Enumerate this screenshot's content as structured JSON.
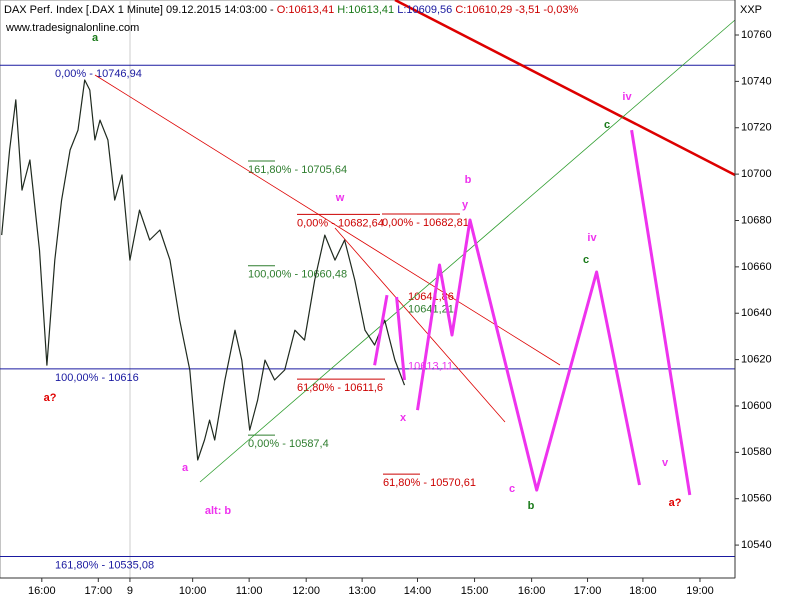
{
  "chart_data": {
    "type": "line",
    "title_parts": [
      "DAX Perf. Index [.DAX  1 Minute] 09.12.2015 14:03:00 - ",
      "O:10613,41",
      " H:10613,41",
      " L:10609,56",
      " C:10610,29 -3,51 -0,03%"
    ],
    "source": "www.tradesignalonline.com",
    "axis_label": "XXP",
    "xlim": [
      -0.74,
      12.27
    ],
    "ylim": [
      10525.8,
      10775.1
    ],
    "xticks": [
      {
        "value": 0,
        "label": "16:00"
      },
      {
        "value": 1,
        "label": "17:00"
      },
      {
        "value": 1.56,
        "label": "9"
      },
      {
        "value": 2.67,
        "label": "10:00"
      },
      {
        "value": 3.67,
        "label": "11:00"
      },
      {
        "value": 4.68,
        "label": "12:00"
      },
      {
        "value": 5.67,
        "label": "13:00"
      },
      {
        "value": 6.65,
        "label": "14:00"
      },
      {
        "value": 7.66,
        "label": "15:00"
      },
      {
        "value": 8.67,
        "label": "16:00"
      },
      {
        "value": 9.66,
        "label": "17:00"
      },
      {
        "value": 10.64,
        "label": "18:00"
      },
      {
        "value": 11.65,
        "label": "19:00"
      }
    ],
    "yticks": [
      10540,
      10560,
      10580,
      10600,
      10620,
      10640,
      10660,
      10680,
      10700,
      10720,
      10740,
      10760
    ],
    "series": [
      {
        "color": "#1f2a1f",
        "width": 1.2,
        "x": [
          -0.71,
          -0.57,
          -0.46,
          -0.35,
          -0.21,
          -0.04,
          0.09,
          0.23,
          0.35,
          0.5,
          0.64,
          0.76,
          0.85,
          0.94,
          1.03,
          1.17,
          1.29,
          1.42,
          1.56,
          1.73,
          1.91,
          2.09,
          2.27,
          2.44,
          2.62,
          2.76,
          2.88,
          2.97,
          3.06,
          3.24,
          3.42,
          3.54,
          3.68,
          3.82,
          3.95,
          4.12,
          4.3,
          4.48,
          4.65,
          4.83,
          5.01,
          5.19,
          5.36,
          5.54,
          5.72,
          5.89,
          6.07,
          6.25,
          6.42
        ],
        "values": [
          10673.7,
          10710.4,
          10732.0,
          10693.1,
          10706.1,
          10667.2,
          10617.6,
          10662.9,
          10688.8,
          10710.4,
          10719.0,
          10740.6,
          10736.3,
          10714.7,
          10723.3,
          10714.7,
          10688.8,
          10699.6,
          10662.9,
          10684.5,
          10671.6,
          10675.9,
          10662.9,
          10637.0,
          10615.5,
          10576.7,
          10585.3,
          10593.9,
          10585.3,
          10611.2,
          10632.7,
          10619.8,
          10589.6,
          10602.5,
          10619.8,
          10611.2,
          10615.5,
          10632.7,
          10628.4,
          10654.3,
          10673.7,
          10662.9,
          10671.6,
          10654.3,
          10632.7,
          10626.3,
          10637.0,
          10619.8,
          10609.0
        ]
      },
      {
        "color": "#ee33ee",
        "width": 3,
        "x": [
          6.65,
          7.04,
          7.26,
          7.58,
          8.76,
          9.82,
          10.58,
          null,
          10.44,
          11.47,
          null,
          5.89,
          6.11,
          null,
          6.28,
          6.42
        ],
        "values": [
          10598.2,
          10660.8,
          10630.6,
          10680.2,
          10563.7,
          10657.8,
          10565.9,
          null,
          10719.0,
          10561.6,
          null,
          10617.6,
          10647.8,
          null,
          10647.0,
          10611.2
        ]
      }
    ],
    "levels": [
      {
        "value": 10746.94,
        "label": "0,00% - 10746,94",
        "color": "#1a1aa0"
      },
      {
        "value": 10616,
        "label": "100,00% - 10616",
        "color": "#1a1aa0"
      },
      {
        "value": 10535.08,
        "label": "161,80% - 10535,08",
        "color": "#1a1aa0"
      },
      {
        "value": 10682.64,
        "label": "0,00% - 10682,64",
        "color": "#cc0000"
      },
      {
        "value": 10682.81,
        "label": "0,00% - 10682,81",
        "color": "#cc0000"
      },
      {
        "value": 10611.6,
        "label": "61,80% - 10611,6",
        "color": "#cc0000"
      },
      {
        "value": 10570.61,
        "label": "61,80% - 10570,61",
        "color": "#cc0000"
      },
      {
        "value": 10705.64,
        "label": "161,80% - 10705,64",
        "color": "#2e7d2e"
      },
      {
        "value": 10660.48,
        "label": "100,00% - 10660,48",
        "color": "#2e7d2e"
      },
      {
        "value": 10587.4,
        "label": "0,00% - 10587,4",
        "color": "#2e7d2e"
      }
    ],
    "price_labels": [
      {
        "value": 10641.86,
        "label": "10641,86",
        "color": "#cc0000"
      },
      {
        "value": 10641.21,
        "label": "10641,21",
        "color": "#2e7d2e"
      },
      {
        "value": 10613.11,
        "label": "10613,11",
        "color": "#ee33ee"
      }
    ],
    "annotations": [
      "a",
      "a?",
      "w",
      "b",
      "y",
      "x",
      "a",
      "alt: b",
      "c",
      "b",
      "c",
      "iv",
      "c",
      "iv",
      "v",
      "a?"
    ]
  }
}
